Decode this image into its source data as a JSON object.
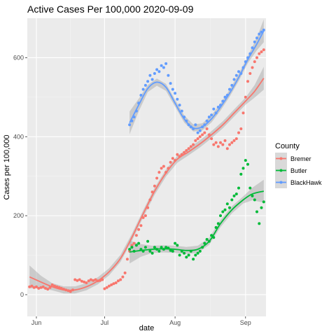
{
  "chart_data": {
    "type": "scatter",
    "title": "Active Cases Per 100,000 2020-09-09",
    "xlabel": "date",
    "ylabel": "Cases per 100,000",
    "xlim": [
      "2020-05-28",
      "2020-09-10"
    ],
    "ylim": [
      -55,
      700
    ],
    "x_ticks": [
      {
        "date": "2020-06-01",
        "label": "Jun"
      },
      {
        "date": "2020-07-01",
        "label": "Jul"
      },
      {
        "date": "2020-08-01",
        "label": "Aug"
      },
      {
        "date": "2020-09-01",
        "label": "Sep"
      }
    ],
    "y_ticks": [
      0,
      200,
      400,
      600
    ],
    "grid": true,
    "smoothing_band": true,
    "legend": {
      "title": "County",
      "position": "right"
    },
    "series": [
      {
        "name": "Bremer",
        "color": "#F8766D",
        "points": [
          [
            "2020-05-29",
            20
          ],
          [
            "2020-05-30",
            22
          ],
          [
            "2020-05-31",
            18
          ],
          [
            "2020-06-01",
            20
          ],
          [
            "2020-06-02",
            16
          ],
          [
            "2020-06-03",
            18
          ],
          [
            "2020-06-04",
            20
          ],
          [
            "2020-06-05",
            16
          ],
          [
            "2020-06-06",
            14
          ],
          [
            "2020-06-07",
            18
          ],
          [
            "2020-06-08",
            25
          ],
          [
            "2020-06-09",
            22
          ],
          [
            "2020-06-10",
            20
          ],
          [
            "2020-06-11",
            18
          ],
          [
            "2020-06-12",
            16
          ],
          [
            "2020-06-13",
            14
          ],
          [
            "2020-06-14",
            12
          ],
          [
            "2020-06-15",
            10
          ],
          [
            "2020-06-16",
            8
          ],
          [
            "2020-06-17",
            12
          ],
          [
            "2020-06-18",
            38
          ],
          [
            "2020-06-19",
            36
          ],
          [
            "2020-06-20",
            38
          ],
          [
            "2020-06-21",
            34
          ],
          [
            "2020-06-22",
            32
          ],
          [
            "2020-06-23",
            30
          ],
          [
            "2020-06-24",
            35
          ],
          [
            "2020-06-25",
            38
          ],
          [
            "2020-06-26",
            36
          ],
          [
            "2020-06-27",
            38
          ],
          [
            "2020-06-28",
            35
          ],
          [
            "2020-06-29",
            36
          ],
          [
            "2020-06-30",
            38
          ],
          [
            "2020-07-01",
            15
          ],
          [
            "2020-07-02",
            18
          ],
          [
            "2020-07-03",
            22
          ],
          [
            "2020-07-04",
            25
          ],
          [
            "2020-07-05",
            28
          ],
          [
            "2020-07-06",
            30
          ],
          [
            "2020-07-07",
            35
          ],
          [
            "2020-07-08",
            38
          ],
          [
            "2020-07-09",
            45
          ],
          [
            "2020-07-10",
            55
          ],
          [
            "2020-07-11",
            90
          ],
          [
            "2020-07-12",
            110
          ],
          [
            "2020-07-13",
            125
          ],
          [
            "2020-07-14",
            130
          ],
          [
            "2020-07-15",
            150
          ],
          [
            "2020-07-16",
            165
          ],
          [
            "2020-07-17",
            175
          ],
          [
            "2020-07-18",
            195
          ],
          [
            "2020-07-19",
            200
          ],
          [
            "2020-07-20",
            220
          ],
          [
            "2020-07-21",
            240
          ],
          [
            "2020-07-22",
            260
          ],
          [
            "2020-07-23",
            275
          ],
          [
            "2020-07-24",
            295
          ],
          [
            "2020-07-25",
            310
          ],
          [
            "2020-07-26",
            320
          ],
          [
            "2020-07-27",
            325
          ],
          [
            "2020-07-28",
            310
          ],
          [
            "2020-07-29",
            320
          ],
          [
            "2020-07-30",
            335
          ],
          [
            "2020-07-31",
            345
          ],
          [
            "2020-08-01",
            340
          ],
          [
            "2020-08-02",
            355
          ],
          [
            "2020-08-03",
            350
          ],
          [
            "2020-08-04",
            355
          ],
          [
            "2020-08-05",
            360
          ],
          [
            "2020-08-06",
            365
          ],
          [
            "2020-08-07",
            370
          ],
          [
            "2020-08-08",
            375
          ],
          [
            "2020-08-09",
            380
          ],
          [
            "2020-08-10",
            390
          ],
          [
            "2020-08-11",
            395
          ],
          [
            "2020-08-12",
            400
          ],
          [
            "2020-08-13",
            405
          ],
          [
            "2020-08-14",
            410
          ],
          [
            "2020-08-15",
            420
          ],
          [
            "2020-08-16",
            405
          ],
          [
            "2020-08-17",
            395
          ],
          [
            "2020-08-18",
            380
          ],
          [
            "2020-08-19",
            385
          ],
          [
            "2020-08-20",
            375
          ],
          [
            "2020-08-21",
            385
          ],
          [
            "2020-08-22",
            380
          ],
          [
            "2020-08-23",
            390
          ],
          [
            "2020-08-24",
            370
          ],
          [
            "2020-08-25",
            380
          ],
          [
            "2020-08-26",
            385
          ],
          [
            "2020-08-27",
            390
          ],
          [
            "2020-08-28",
            395
          ],
          [
            "2020-08-29",
            410
          ],
          [
            "2020-08-30",
            420
          ],
          [
            "2020-08-31",
            460
          ],
          [
            "2020-09-01",
            500
          ],
          [
            "2020-09-02",
            540
          ],
          [
            "2020-09-03",
            560
          ],
          [
            "2020-09-04",
            575
          ],
          [
            "2020-09-05",
            590
          ],
          [
            "2020-09-06",
            600
          ],
          [
            "2020-09-07",
            610
          ],
          [
            "2020-09-08",
            615
          ],
          [
            "2020-09-09",
            620
          ]
        ],
        "trend": [
          [
            "2020-05-29",
            45
          ],
          [
            "2020-06-03",
            32
          ],
          [
            "2020-06-08",
            20
          ],
          [
            "2020-06-13",
            12
          ],
          [
            "2020-06-18",
            12
          ],
          [
            "2020-06-23",
            20
          ],
          [
            "2020-06-28",
            35
          ],
          [
            "2020-07-03",
            58
          ],
          [
            "2020-07-08",
            92
          ],
          [
            "2020-07-13",
            145
          ],
          [
            "2020-07-18",
            205
          ],
          [
            "2020-07-23",
            262
          ],
          [
            "2020-07-28",
            308
          ],
          [
            "2020-08-02",
            343
          ],
          [
            "2020-08-07",
            362
          ],
          [
            "2020-08-12",
            382
          ],
          [
            "2020-08-17",
            405
          ],
          [
            "2020-08-22",
            430
          ],
          [
            "2020-08-27",
            460
          ],
          [
            "2020-09-01",
            490
          ],
          [
            "2020-09-05",
            515
          ],
          [
            "2020-09-09",
            548
          ]
        ]
      },
      {
        "name": "Butler",
        "color": "#00BA38",
        "points": [
          [
            "2020-07-12",
            115
          ],
          [
            "2020-07-13",
            120
          ],
          [
            "2020-07-14",
            110
          ],
          [
            "2020-07-15",
            125
          ],
          [
            "2020-07-16",
            130
          ],
          [
            "2020-07-17",
            115
          ],
          [
            "2020-07-18",
            110
          ],
          [
            "2020-07-19",
            120
          ],
          [
            "2020-07-20",
            135
          ],
          [
            "2020-07-21",
            110
          ],
          [
            "2020-07-22",
            105
          ],
          [
            "2020-07-23",
            120
          ],
          [
            "2020-07-24",
            115
          ],
          [
            "2020-07-25",
            110
          ],
          [
            "2020-07-26",
            120
          ],
          [
            "2020-07-27",
            115
          ],
          [
            "2020-07-28",
            120
          ],
          [
            "2020-07-29",
            118
          ],
          [
            "2020-07-30",
            112
          ],
          [
            "2020-07-31",
            110
          ],
          [
            "2020-08-01",
            130
          ],
          [
            "2020-08-02",
            125
          ],
          [
            "2020-08-03",
            100
          ],
          [
            "2020-08-04",
            110
          ],
          [
            "2020-08-05",
            105
          ],
          [
            "2020-08-06",
            95
          ],
          [
            "2020-08-07",
            100
          ],
          [
            "2020-08-08",
            110
          ],
          [
            "2020-08-09",
            90
          ],
          [
            "2020-08-10",
            100
          ],
          [
            "2020-08-11",
            105
          ],
          [
            "2020-08-12",
            110
          ],
          [
            "2020-08-13",
            120
          ],
          [
            "2020-08-14",
            130
          ],
          [
            "2020-08-15",
            140
          ],
          [
            "2020-08-16",
            135
          ],
          [
            "2020-08-17",
            150
          ],
          [
            "2020-08-18",
            145
          ],
          [
            "2020-08-19",
            170
          ],
          [
            "2020-08-20",
            180
          ],
          [
            "2020-08-21",
            200
          ],
          [
            "2020-08-22",
            210
          ],
          [
            "2020-08-23",
            215
          ],
          [
            "2020-08-24",
            230
          ],
          [
            "2020-08-25",
            220
          ],
          [
            "2020-08-26",
            240
          ],
          [
            "2020-08-27",
            250
          ],
          [
            "2020-08-28",
            255
          ],
          [
            "2020-08-29",
            270
          ],
          [
            "2020-08-30",
            305
          ],
          [
            "2020-08-31",
            320
          ],
          [
            "2020-09-01",
            340
          ],
          [
            "2020-09-02",
            330
          ],
          [
            "2020-09-03",
            270
          ],
          [
            "2020-09-04",
            250
          ],
          [
            "2020-09-05",
            240
          ],
          [
            "2020-09-06",
            210
          ],
          [
            "2020-09-07",
            180
          ],
          [
            "2020-09-08",
            220
          ],
          [
            "2020-09-09",
            235
          ]
        ],
        "trend": [
          [
            "2020-07-12",
            108
          ],
          [
            "2020-07-17",
            112
          ],
          [
            "2020-07-22",
            115
          ],
          [
            "2020-07-27",
            116
          ],
          [
            "2020-08-01",
            115
          ],
          [
            "2020-08-06",
            112
          ],
          [
            "2020-08-11",
            115
          ],
          [
            "2020-08-16",
            135
          ],
          [
            "2020-08-21",
            180
          ],
          [
            "2020-08-26",
            215
          ],
          [
            "2020-08-31",
            240
          ],
          [
            "2020-09-04",
            255
          ],
          [
            "2020-09-09",
            262
          ]
        ]
      },
      {
        "name": "BlackHawk",
        "color": "#619CFF",
        "points": [
          [
            "2020-07-12",
            430
          ],
          [
            "2020-07-13",
            440
          ],
          [
            "2020-07-14",
            450
          ],
          [
            "2020-07-15",
            465
          ],
          [
            "2020-07-16",
            485
          ],
          [
            "2020-07-17",
            505
          ],
          [
            "2020-07-18",
            520
          ],
          [
            "2020-07-19",
            530
          ],
          [
            "2020-07-20",
            540
          ],
          [
            "2020-07-21",
            555
          ],
          [
            "2020-07-22",
            545
          ],
          [
            "2020-07-23",
            560
          ],
          [
            "2020-07-24",
            570
          ],
          [
            "2020-07-25",
            565
          ],
          [
            "2020-07-26",
            580
          ],
          [
            "2020-07-27",
            575
          ],
          [
            "2020-07-28",
            585
          ],
          [
            "2020-07-29",
            555
          ],
          [
            "2020-07-30",
            535
          ],
          [
            "2020-07-31",
            520
          ],
          [
            "2020-08-01",
            510
          ],
          [
            "2020-08-02",
            495
          ],
          [
            "2020-08-03",
            480
          ],
          [
            "2020-08-04",
            465
          ],
          [
            "2020-08-05",
            450
          ],
          [
            "2020-08-06",
            440
          ],
          [
            "2020-08-07",
            430
          ],
          [
            "2020-08-08",
            425
          ],
          [
            "2020-08-09",
            420
          ],
          [
            "2020-08-10",
            430
          ],
          [
            "2020-08-11",
            410
          ],
          [
            "2020-08-12",
            415
          ],
          [
            "2020-08-13",
            425
          ],
          [
            "2020-08-14",
            430
          ],
          [
            "2020-08-15",
            440
          ],
          [
            "2020-08-16",
            450
          ],
          [
            "2020-08-17",
            455
          ],
          [
            "2020-08-18",
            470
          ],
          [
            "2020-08-19",
            460
          ],
          [
            "2020-08-20",
            475
          ],
          [
            "2020-08-21",
            480
          ],
          [
            "2020-08-22",
            490
          ],
          [
            "2020-08-23",
            500
          ],
          [
            "2020-08-24",
            505
          ],
          [
            "2020-08-25",
            520
          ],
          [
            "2020-08-26",
            530
          ],
          [
            "2020-08-27",
            545
          ],
          [
            "2020-08-28",
            555
          ],
          [
            "2020-08-29",
            565
          ],
          [
            "2020-08-30",
            560
          ],
          [
            "2020-08-31",
            575
          ],
          [
            "2020-09-01",
            590
          ],
          [
            "2020-09-02",
            600
          ],
          [
            "2020-09-03",
            610
          ],
          [
            "2020-09-04",
            625
          ],
          [
            "2020-09-05",
            640
          ],
          [
            "2020-09-06",
            650
          ],
          [
            "2020-09-07",
            660
          ],
          [
            "2020-09-08",
            665
          ],
          [
            "2020-09-09",
            670
          ]
        ],
        "trend": [
          [
            "2020-07-12",
            435
          ],
          [
            "2020-07-16",
            480
          ],
          [
            "2020-07-20",
            522
          ],
          [
            "2020-07-24",
            538
          ],
          [
            "2020-07-28",
            525
          ],
          [
            "2020-08-01",
            485
          ],
          [
            "2020-08-05",
            445
          ],
          [
            "2020-08-09",
            422
          ],
          [
            "2020-08-13",
            425
          ],
          [
            "2020-08-17",
            445
          ],
          [
            "2020-08-21",
            475
          ],
          [
            "2020-08-25",
            510
          ],
          [
            "2020-08-29",
            550
          ],
          [
            "2020-09-02",
            595
          ],
          [
            "2020-09-06",
            635
          ],
          [
            "2020-09-09",
            668
          ]
        ]
      }
    ]
  }
}
